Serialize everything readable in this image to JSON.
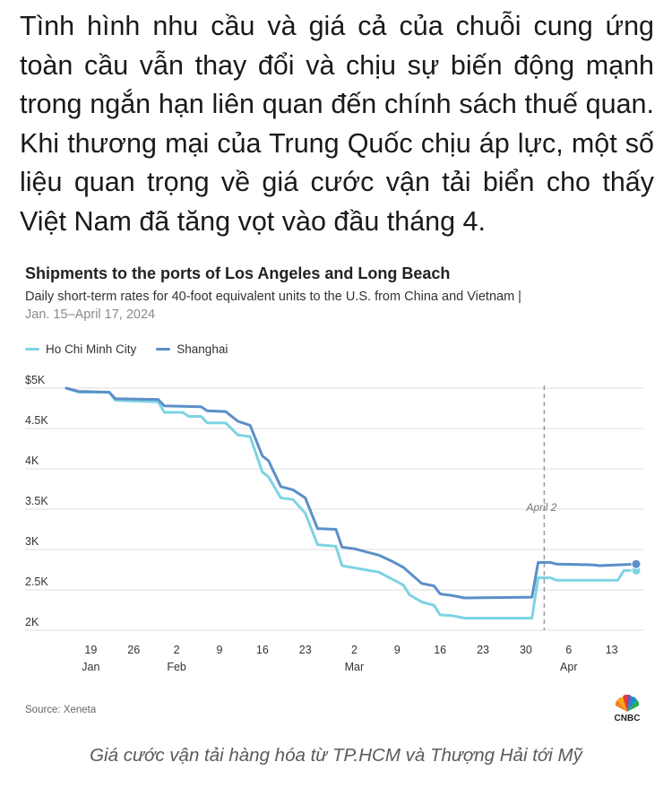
{
  "article": {
    "intro": "Tình hình nhu cầu và giá cả của chuỗi cung ứng toàn cầu vẫn thay đổi và chịu sự biến động mạnh trong ngắn hạn liên quan đến chính sách thuế quan. Khi thương mại của Trung Quốc chịu áp lực, một số liệu quan trọng về giá cước vận tải biển cho thấy Việt Nam đã tăng vọt vào đầu tháng 4.",
    "caption": "Giá cước vận tải hàng hóa từ TP.HCM và Thượng Hải tới Mỹ"
  },
  "chart_header": {
    "title": "Shipments to the ports of Los Angeles and Long Beach",
    "subtitle": "Daily short-term rates for 40-foot equivalent units to the U.S. from China and Vietnam |",
    "date_range": "Jan. 15–April 17, 2024",
    "source": "Source: Xeneta",
    "logo": "CNBC"
  },
  "colors": {
    "hcmc": "#7dd3e3",
    "shanghai": "#5b8fc7",
    "grid": "#dddddd",
    "annotation": "#9a9a9a"
  },
  "chart_data": {
    "type": "line",
    "title": "Shipments to the ports of Los Angeles and Long Beach",
    "subtitle": "Daily short-term rates for 40-foot equivalent units to the U.S. from China and Vietnam | Jan. 15–April 17, 2024",
    "xlabel": "",
    "ylabel": "",
    "ylim": [
      2000,
      5000
    ],
    "yticks": [
      {
        "value": 5000,
        "label": "$5K"
      },
      {
        "value": 4500,
        "label": "4.5K"
      },
      {
        "value": 4000,
        "label": "4K"
      },
      {
        "value": 3500,
        "label": "3.5K"
      },
      {
        "value": 3000,
        "label": "3K"
      },
      {
        "value": 2500,
        "label": "2.5K"
      },
      {
        "value": 2000,
        "label": "2K"
      }
    ],
    "xlim": [
      "2024-01-15",
      "2024-04-17"
    ],
    "xticks": [
      {
        "date": "2024-01-19",
        "label": "19",
        "month": "Jan"
      },
      {
        "date": "2024-01-26",
        "label": "26",
        "month": ""
      },
      {
        "date": "2024-02-02",
        "label": "2",
        "month": "Feb"
      },
      {
        "date": "2024-02-09",
        "label": "9",
        "month": ""
      },
      {
        "date": "2024-02-16",
        "label": "16",
        "month": ""
      },
      {
        "date": "2024-02-23",
        "label": "23",
        "month": ""
      },
      {
        "date": "2024-03-02",
        "label": "2",
        "month": "Mar"
      },
      {
        "date": "2024-03-09",
        "label": "9",
        "month": ""
      },
      {
        "date": "2024-03-16",
        "label": "16",
        "month": ""
      },
      {
        "date": "2024-03-23",
        "label": "23",
        "month": ""
      },
      {
        "date": "2024-03-30",
        "label": "30",
        "month": ""
      },
      {
        "date": "2024-04-06",
        "label": "6",
        "month": "Apr"
      },
      {
        "date": "2024-04-13",
        "label": "13",
        "month": ""
      }
    ],
    "grid": true,
    "legend": "top-left",
    "annotations": [
      {
        "date": "2024-04-02",
        "label": "April 2",
        "style": "dashed-vertical"
      }
    ],
    "series": [
      {
        "name": "Ho Chi Minh City",
        "color": "#7dd3e3",
        "points": [
          [
            "2024-01-15",
            5000
          ],
          [
            "2024-01-17",
            4950
          ],
          [
            "2024-01-22",
            4950
          ],
          [
            "2024-01-23",
            4850
          ],
          [
            "2024-01-30",
            4830
          ],
          [
            "2024-01-31",
            4700
          ],
          [
            "2024-02-03",
            4700
          ],
          [
            "2024-02-04",
            4650
          ],
          [
            "2024-02-06",
            4650
          ],
          [
            "2024-02-07",
            4570
          ],
          [
            "2024-02-10",
            4570
          ],
          [
            "2024-02-12",
            4420
          ],
          [
            "2024-02-14",
            4400
          ],
          [
            "2024-02-16",
            3960
          ],
          [
            "2024-02-17",
            3900
          ],
          [
            "2024-02-19",
            3640
          ],
          [
            "2024-02-21",
            3620
          ],
          [
            "2024-02-23",
            3450
          ],
          [
            "2024-02-25",
            3060
          ],
          [
            "2024-02-28",
            3040
          ],
          [
            "2024-02-29",
            2800
          ],
          [
            "2024-03-03",
            2760
          ],
          [
            "2024-03-06",
            2720
          ],
          [
            "2024-03-08",
            2640
          ],
          [
            "2024-03-10",
            2560
          ],
          [
            "2024-03-11",
            2440
          ],
          [
            "2024-03-13",
            2350
          ],
          [
            "2024-03-15",
            2310
          ],
          [
            "2024-03-16",
            2190
          ],
          [
            "2024-03-18",
            2180
          ],
          [
            "2024-03-20",
            2150
          ],
          [
            "2024-03-31",
            2150
          ],
          [
            "2024-04-01",
            2650
          ],
          [
            "2024-04-03",
            2650
          ],
          [
            "2024-04-04",
            2620
          ],
          [
            "2024-04-14",
            2620
          ],
          [
            "2024-04-15",
            2740
          ],
          [
            "2024-04-17",
            2740
          ]
        ]
      },
      {
        "name": "Shanghai",
        "color": "#5b8fc7",
        "points": [
          [
            "2024-01-15",
            5000
          ],
          [
            "2024-01-17",
            4960
          ],
          [
            "2024-01-22",
            4950
          ],
          [
            "2024-01-23",
            4870
          ],
          [
            "2024-01-30",
            4860
          ],
          [
            "2024-01-31",
            4780
          ],
          [
            "2024-02-06",
            4770
          ],
          [
            "2024-02-07",
            4720
          ],
          [
            "2024-02-10",
            4710
          ],
          [
            "2024-02-12",
            4590
          ],
          [
            "2024-02-14",
            4540
          ],
          [
            "2024-02-16",
            4160
          ],
          [
            "2024-02-17",
            4100
          ],
          [
            "2024-02-19",
            3780
          ],
          [
            "2024-02-21",
            3740
          ],
          [
            "2024-02-23",
            3640
          ],
          [
            "2024-02-25",
            3260
          ],
          [
            "2024-02-28",
            3250
          ],
          [
            "2024-02-29",
            3030
          ],
          [
            "2024-03-02",
            3010
          ],
          [
            "2024-03-06",
            2930
          ],
          [
            "2024-03-08",
            2860
          ],
          [
            "2024-03-10",
            2780
          ],
          [
            "2024-03-13",
            2580
          ],
          [
            "2024-03-15",
            2550
          ],
          [
            "2024-03-16",
            2450
          ],
          [
            "2024-03-18",
            2430
          ],
          [
            "2024-03-20",
            2400
          ],
          [
            "2024-03-31",
            2410
          ],
          [
            "2024-04-01",
            2840
          ],
          [
            "2024-04-03",
            2840
          ],
          [
            "2024-04-04",
            2820
          ],
          [
            "2024-04-10",
            2810
          ],
          [
            "2024-04-11",
            2800
          ],
          [
            "2024-04-17",
            2820
          ]
        ]
      }
    ]
  }
}
